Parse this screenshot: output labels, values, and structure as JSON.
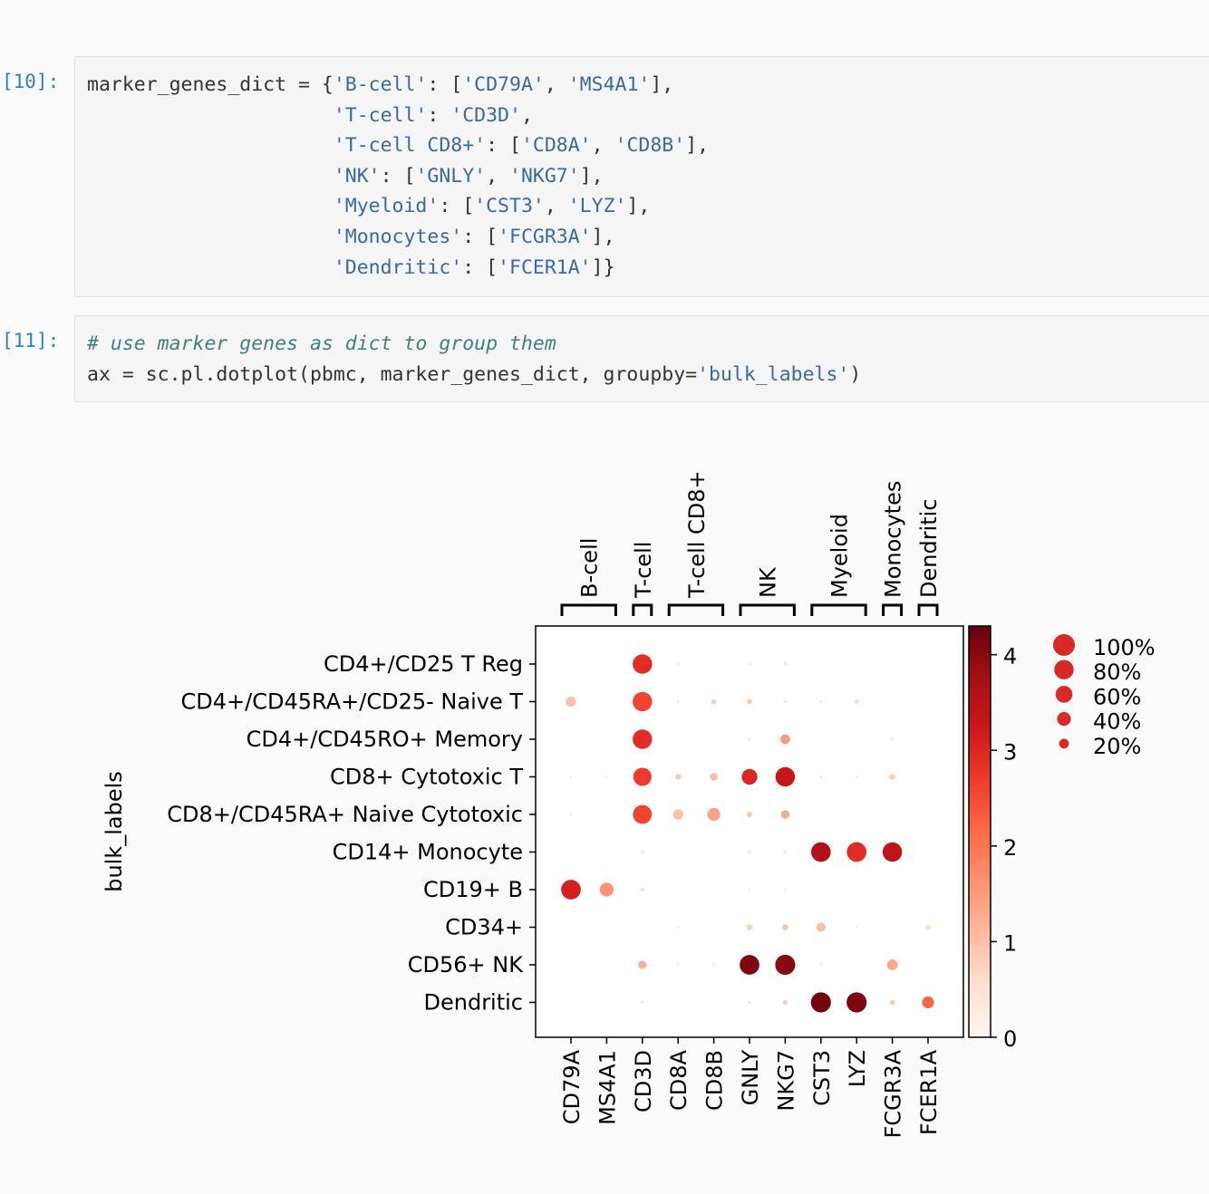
{
  "cells": [
    {
      "prompt": "[10]:",
      "code_lines": [
        [
          {
            "t": "o",
            "v": "marker_genes_dict = {"
          },
          {
            "t": "s",
            "v": "'B-cell'"
          },
          {
            "t": "o",
            "v": ": ["
          },
          {
            "t": "s",
            "v": "'CD79A'"
          },
          {
            "t": "o",
            "v": ", "
          },
          {
            "t": "s",
            "v": "'MS4A1'"
          },
          {
            "t": "o",
            "v": "],"
          }
        ],
        [
          {
            "t": "o",
            "v": "                     "
          },
          {
            "t": "s",
            "v": "'T-cell'"
          },
          {
            "t": "o",
            "v": ": "
          },
          {
            "t": "s",
            "v": "'CD3D'"
          },
          {
            "t": "o",
            "v": ","
          }
        ],
        [
          {
            "t": "o",
            "v": "                     "
          },
          {
            "t": "s",
            "v": "'T-cell CD8+'"
          },
          {
            "t": "o",
            "v": ": ["
          },
          {
            "t": "s",
            "v": "'CD8A'"
          },
          {
            "t": "o",
            "v": ", "
          },
          {
            "t": "s",
            "v": "'CD8B'"
          },
          {
            "t": "o",
            "v": "],"
          }
        ],
        [
          {
            "t": "o",
            "v": "                     "
          },
          {
            "t": "s",
            "v": "'NK'"
          },
          {
            "t": "o",
            "v": ": ["
          },
          {
            "t": "s",
            "v": "'GNLY'"
          },
          {
            "t": "o",
            "v": ", "
          },
          {
            "t": "s",
            "v": "'NKG7'"
          },
          {
            "t": "o",
            "v": "],"
          }
        ],
        [
          {
            "t": "o",
            "v": "                     "
          },
          {
            "t": "s",
            "v": "'Myeloid'"
          },
          {
            "t": "o",
            "v": ": ["
          },
          {
            "t": "s",
            "v": "'CST3'"
          },
          {
            "t": "o",
            "v": ", "
          },
          {
            "t": "s",
            "v": "'LYZ'"
          },
          {
            "t": "o",
            "v": "],"
          }
        ],
        [
          {
            "t": "o",
            "v": "                     "
          },
          {
            "t": "s",
            "v": "'Monocytes'"
          },
          {
            "t": "o",
            "v": ": ["
          },
          {
            "t": "s",
            "v": "'FCGR3A'"
          },
          {
            "t": "o",
            "v": "],"
          }
        ],
        [
          {
            "t": "o",
            "v": "                     "
          },
          {
            "t": "s",
            "v": "'Dendritic'"
          },
          {
            "t": "o",
            "v": ": ["
          },
          {
            "t": "s",
            "v": "'FCER1A'"
          },
          {
            "t": "o",
            "v": "]}"
          }
        ]
      ]
    },
    {
      "prompt": "[11]:",
      "code_lines": [
        [
          {
            "t": "c",
            "v": "# use marker genes as dict to group them"
          }
        ],
        [
          {
            "t": "o",
            "v": "ax = sc.pl.dotplot(pbmc, marker_genes_dict, groupby="
          },
          {
            "t": "s",
            "v": "'bulk_labels'"
          },
          {
            "t": "o",
            "v": ")"
          }
        ]
      ]
    }
  ],
  "chart_data": {
    "type": "dotplot",
    "ylabel": "bulk_labels",
    "genes": [
      "CD79A",
      "MS4A1",
      "CD3D",
      "CD8A",
      "CD8B",
      "GNLY",
      "NKG7",
      "CST3",
      "LYZ",
      "FCGR3A",
      "FCER1A"
    ],
    "groups": [
      {
        "label": "B-cell",
        "start": 0,
        "end": 1
      },
      {
        "label": "T-cell",
        "start": 2,
        "end": 2
      },
      {
        "label": "T-cell CD8+",
        "start": 3,
        "end": 4
      },
      {
        "label": "NK",
        "start": 5,
        "end": 6
      },
      {
        "label": "Myeloid",
        "start": 7,
        "end": 8
      },
      {
        "label": "Monocytes",
        "start": 9,
        "end": 9
      },
      {
        "label": "Dendritic",
        "start": 10,
        "end": 10
      }
    ],
    "categories": [
      "CD4+/CD25 T Reg",
      "CD4+/CD45RA+/CD25- Naive T",
      "CD4+/CD45RO+ Memory",
      "CD8+ Cytotoxic T",
      "CD8+/CD45RA+ Naive Cytotoxic",
      "CD14+ Monocyte",
      "CD19+ B",
      "CD34+",
      "CD56+ NK",
      "Dendritic"
    ],
    "fraction": [
      [
        0,
        0,
        0.8,
        0.02,
        0,
        0.02,
        0.03,
        0,
        0,
        0,
        0
      ],
      [
        0.22,
        0,
        0.8,
        0.02,
        0.05,
        0.06,
        0.02,
        0.02,
        0.04,
        0,
        0
      ],
      [
        0,
        0,
        0.8,
        0,
        0,
        0.02,
        0.2,
        0,
        0,
        0.02,
        0
      ],
      [
        0.02,
        0.02,
        0.7,
        0.07,
        0.12,
        0.52,
        0.8,
        0.02,
        0.02,
        0.07,
        0
      ],
      [
        0.02,
        0,
        0.75,
        0.22,
        0.35,
        0.06,
        0.16,
        0,
        0,
        0,
        0
      ],
      [
        0,
        0,
        0.03,
        0,
        0,
        0.03,
        0.02,
        0.82,
        0.82,
        0.8,
        0
      ],
      [
        0.82,
        0.4,
        0.03,
        0,
        0,
        0.02,
        0.02,
        0,
        0,
        0,
        0
      ],
      [
        0,
        0,
        0,
        0.02,
        0,
        0.07,
        0.08,
        0.18,
        0.02,
        0,
        0.06
      ],
      [
        0,
        0,
        0.15,
        0.02,
        0.02,
        0.82,
        0.85,
        0.02,
        0,
        0.25,
        0
      ],
      [
        0,
        0,
        0.02,
        0,
        0,
        0.02,
        0.05,
        0.85,
        0.85,
        0.05,
        0.3
      ]
    ],
    "expression": [
      [
        0,
        0,
        2.9,
        0.2,
        0,
        0.2,
        0.3,
        0,
        0,
        0,
        0
      ],
      [
        1.0,
        0,
        2.6,
        0.3,
        0.8,
        0.8,
        0.4,
        0.3,
        0.6,
        0,
        0
      ],
      [
        0,
        0,
        2.9,
        0,
        0,
        0.3,
        1.5,
        0,
        0,
        0.3,
        0
      ],
      [
        0.3,
        0.3,
        2.7,
        0.9,
        1.1,
        3.0,
        3.3,
        0.4,
        0.3,
        0.8,
        0
      ],
      [
        0.3,
        0,
        2.6,
        1.0,
        1.4,
        0.9,
        1.3,
        0,
        0,
        0,
        0
      ],
      [
        0,
        0,
        0.3,
        0,
        0,
        0.3,
        0.3,
        3.6,
        2.9,
        3.4,
        0
      ],
      [
        3.1,
        1.6,
        0.6,
        0,
        0,
        0.3,
        0.3,
        0,
        0,
        0,
        0
      ],
      [
        0,
        0,
        0,
        0.2,
        0,
        0.8,
        0.9,
        1.0,
        0.3,
        0,
        0.6
      ],
      [
        0,
        0,
        1.2,
        0.3,
        0.3,
        4.1,
        4.0,
        0.3,
        0,
        1.3,
        0
      ],
      [
        0,
        0,
        0.3,
        0,
        0,
        0.3,
        0.8,
        4.2,
        4.1,
        0.9,
        2.2
      ]
    ],
    "colorbar": {
      "vmin": 0,
      "vmax": 4.3,
      "ticks": [
        0,
        1,
        2,
        3,
        4
      ],
      "colormap": "Reds"
    },
    "size_legend": {
      "labels": [
        "100%",
        "80%",
        "60%",
        "40%",
        "20%"
      ],
      "fractions": [
        1.0,
        0.8,
        0.6,
        0.4,
        0.2
      ],
      "color": "#d62a25"
    }
  }
}
